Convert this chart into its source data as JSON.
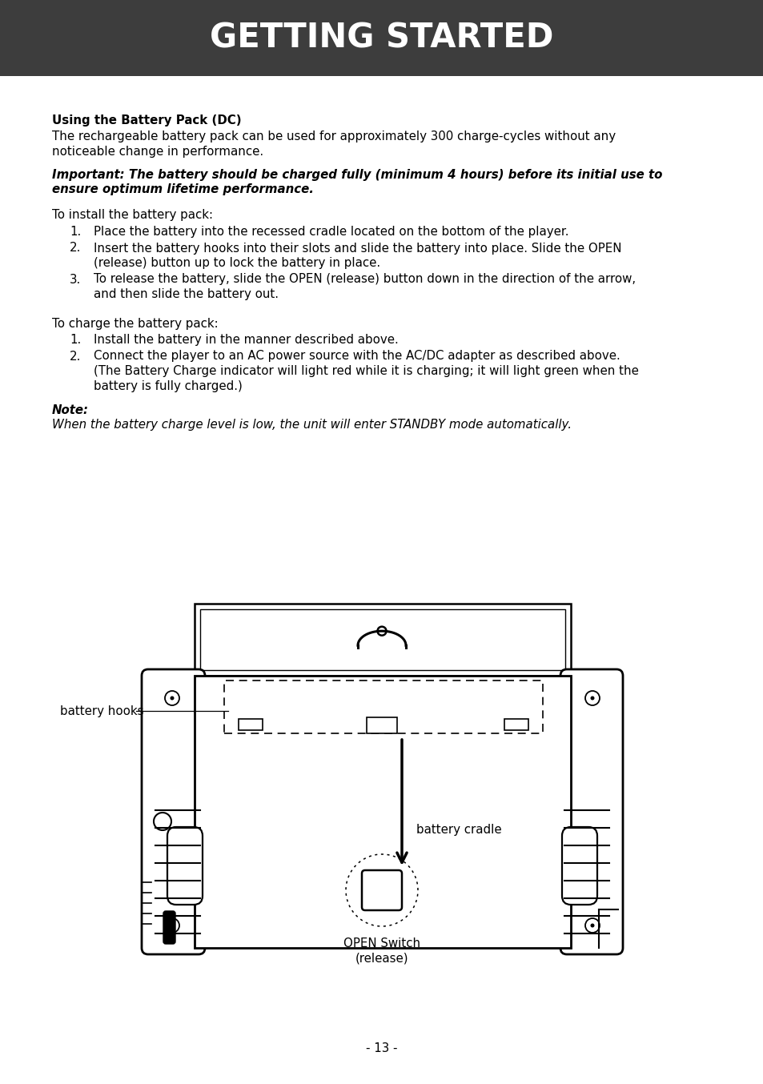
{
  "title": "GETTING STARTED",
  "title_bg": "#3d3d3d",
  "title_color": "#ffffff",
  "title_fontsize": 30,
  "page_bg": "#ffffff",
  "text_color": "#000000",
  "section_heading": "Using the Battery Pack (DC)",
  "para1_line1": "The rechargeable battery pack can be used for approximately 300 charge-cycles without any",
  "para1_line2": "noticeable change in performance.",
  "important_line1": "Important: The battery should be charged fully (minimum 4 hours) before its initial use to",
  "important_line2": "ensure optimum lifetime performance.",
  "install_intro": "To install the battery pack:",
  "install_items": [
    [
      "Place the battery into the recessed cradle located on the bottom of the player."
    ],
    [
      "Insert the battery hooks into their slots and slide the battery into place. Slide the OPEN",
      "(release) button up to lock the battery in place."
    ],
    [
      "To release the battery, slide the OPEN (release) button down in the direction of the arrow,",
      "and then slide the battery out."
    ]
  ],
  "charge_intro": "To charge the battery pack:",
  "charge_items": [
    [
      "Install the battery in the manner described above."
    ],
    [
      "Connect the player to an AC power source with the AC/DC adapter as described above.",
      "(The Battery Charge indicator will light red while it is charging; it will light green when the",
      "battery is fully charged.)"
    ]
  ],
  "note_label": "Note:",
  "note_text": "When the battery charge level is low, the unit will enter STANDBY mode automatically.",
  "label_battery_hooks": "battery hooks",
  "label_battery_cradle": "battery cradle",
  "label_open_switch_line1": "OPEN Switch",
  "label_open_switch_line2": "(release)",
  "page_number": "- 13 -"
}
